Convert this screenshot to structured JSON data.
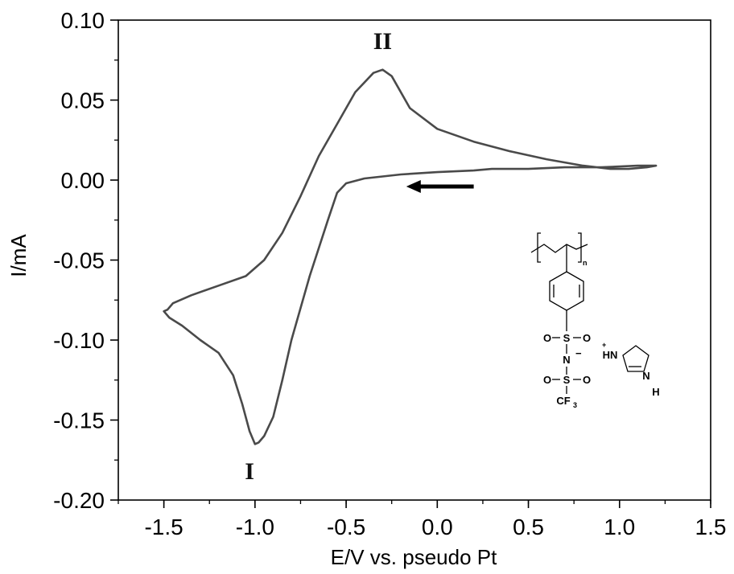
{
  "chart_data": {
    "type": "line",
    "title": "",
    "xlabel": "E/V vs. pseudo Pt",
    "ylabel": "I/mA",
    "xlim": [
      -1.75,
      1.5
    ],
    "ylim": [
      -0.2,
      0.1
    ],
    "x_ticks": [
      -1.5,
      -1.0,
      -0.5,
      0.0,
      0.5,
      1.0,
      1.5
    ],
    "x_tick_labels": [
      "-1.5",
      "-1.0",
      "-0.5",
      "0.0",
      "0.5",
      "1.0",
      "1.5"
    ],
    "y_ticks": [
      -0.2,
      -0.15,
      -0.1,
      -0.05,
      0.0,
      0.05,
      0.1
    ],
    "y_tick_labels": [
      "-0.20",
      "-0.15",
      "-0.10",
      "-0.05",
      "0.00",
      "0.05",
      "0.10"
    ],
    "grid": false,
    "series": [
      {
        "name": "",
        "color": "#4a4a4a",
        "x": [
          0.2,
          0.0,
          -0.2,
          -0.4,
          -0.5,
          -0.55,
          -0.6,
          -0.7,
          -0.8,
          -0.85,
          -0.9,
          -0.95,
          -0.98,
          -1.0,
          -1.03,
          -1.07,
          -1.12,
          -1.2,
          -1.3,
          -1.4,
          -1.47,
          -1.5,
          -1.48,
          -1.45,
          -1.35,
          -1.2,
          -1.05,
          -0.95,
          -0.85,
          -0.75,
          -0.65,
          -0.55,
          -0.45,
          -0.35,
          -0.3,
          -0.25,
          -0.15,
          0.0,
          0.2,
          0.4,
          0.6,
          0.8,
          0.95,
          1.05,
          1.15,
          1.2,
          1.1,
          0.9,
          0.7,
          0.5,
          0.3,
          0.2
        ],
        "y": [
          0.006,
          0.005,
          0.0035,
          0.001,
          -0.002,
          -0.008,
          -0.025,
          -0.06,
          -0.1,
          -0.125,
          -0.148,
          -0.16,
          -0.164,
          -0.165,
          -0.157,
          -0.14,
          -0.122,
          -0.108,
          -0.1,
          -0.091,
          -0.086,
          -0.082,
          -0.081,
          -0.077,
          -0.072,
          -0.066,
          -0.06,
          -0.05,
          -0.033,
          -0.01,
          0.015,
          0.035,
          0.055,
          0.067,
          0.069,
          0.065,
          0.045,
          0.032,
          0.024,
          0.018,
          0.013,
          0.009,
          0.007,
          0.007,
          0.008,
          0.009,
          0.009,
          0.008,
          0.008,
          0.007,
          0.007,
          0.006
        ]
      }
    ],
    "annotations": [
      {
        "text": "II",
        "x": -0.3,
        "y": 0.082
      },
      {
        "text": "I",
        "x": -1.03,
        "y": -0.18
      }
    ],
    "scan_arrow": {
      "x_start": 0.2,
      "x_end": -0.17,
      "y": -0.004
    }
  },
  "structure": {
    "atoms": {
      "s1": "S",
      "o1": "O",
      "o2": "O",
      "n_anion": "N",
      "minus": "−",
      "s2": "S",
      "o3": "O",
      "o4": "O",
      "cf3": "CF",
      "cf3_sub": "3",
      "n_sub": "n",
      "plus": "+",
      "hn": "HN",
      "n2": "N",
      "h": "H"
    }
  }
}
